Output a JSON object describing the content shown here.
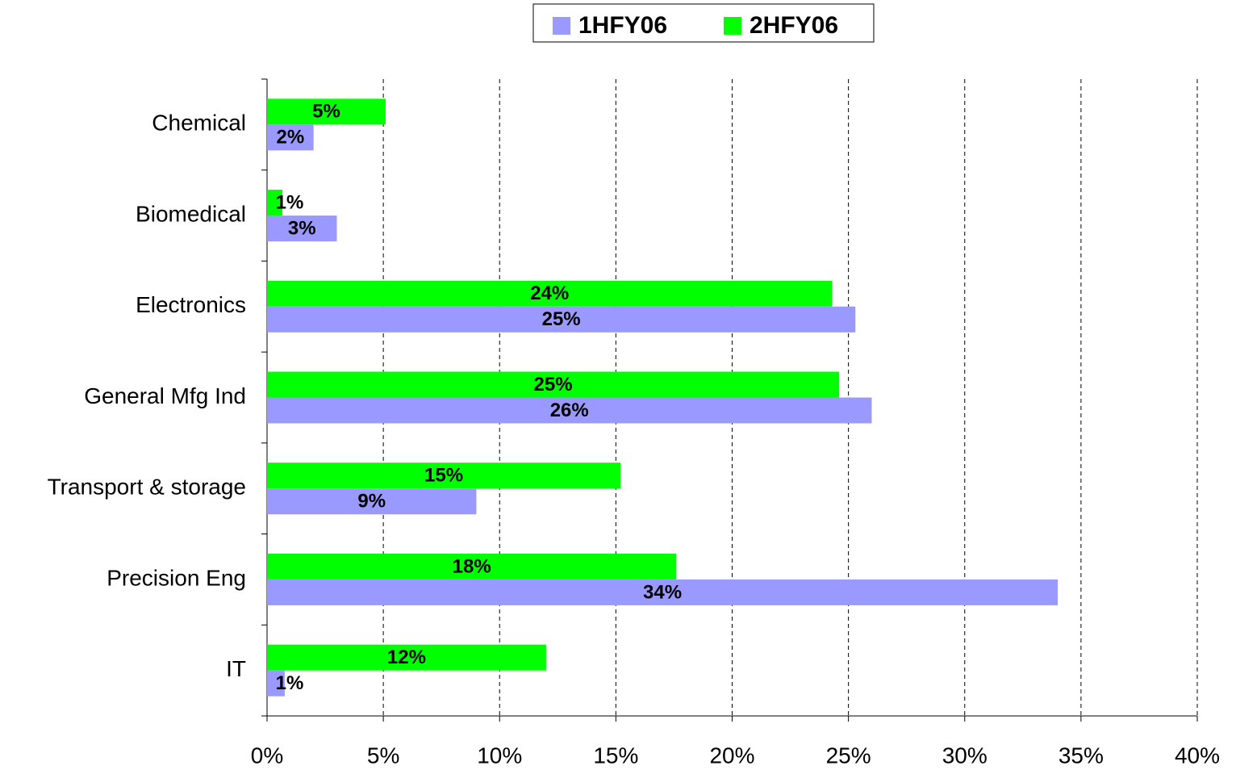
{
  "chart_data": {
    "type": "bar",
    "orientation": "horizontal",
    "categories": [
      "Chemical",
      "Biomedical",
      "Electronics",
      "General Mfg Ind",
      "Transport & storage",
      "Precision Eng",
      "IT"
    ],
    "series": [
      {
        "name": "1HFY06",
        "color": "#9999ff",
        "values": [
          2.0,
          3.0,
          25.3,
          26.0,
          9.0,
          34.0,
          0.76
        ],
        "value_labels": [
          "2%",
          "3%",
          "25%",
          "26%",
          "9%",
          "34%",
          "1%"
        ]
      },
      {
        "name": "2HFY06",
        "color": "#00ff00",
        "values": [
          5.1,
          0.66,
          24.3,
          24.6,
          15.2,
          17.6,
          12.0
        ],
        "value_labels": [
          "5%",
          "1%",
          "24%",
          "25%",
          "15%",
          "18%",
          "12%"
        ]
      }
    ],
    "xlim": [
      0,
      40
    ],
    "xticks": [
      {
        "value": 0,
        "label": "0%"
      },
      {
        "value": 5,
        "label": "5%"
      },
      {
        "value": 10,
        "label": "10%"
      },
      {
        "value": 15,
        "label": "15%"
      },
      {
        "value": 20,
        "label": "20%"
      },
      {
        "value": 25,
        "label": "25%"
      },
      {
        "value": 30,
        "label": "30%"
      },
      {
        "value": 35,
        "label": "35%"
      },
      {
        "value": 40,
        "label": "40%"
      }
    ],
    "grid": true,
    "legend": "top"
  }
}
